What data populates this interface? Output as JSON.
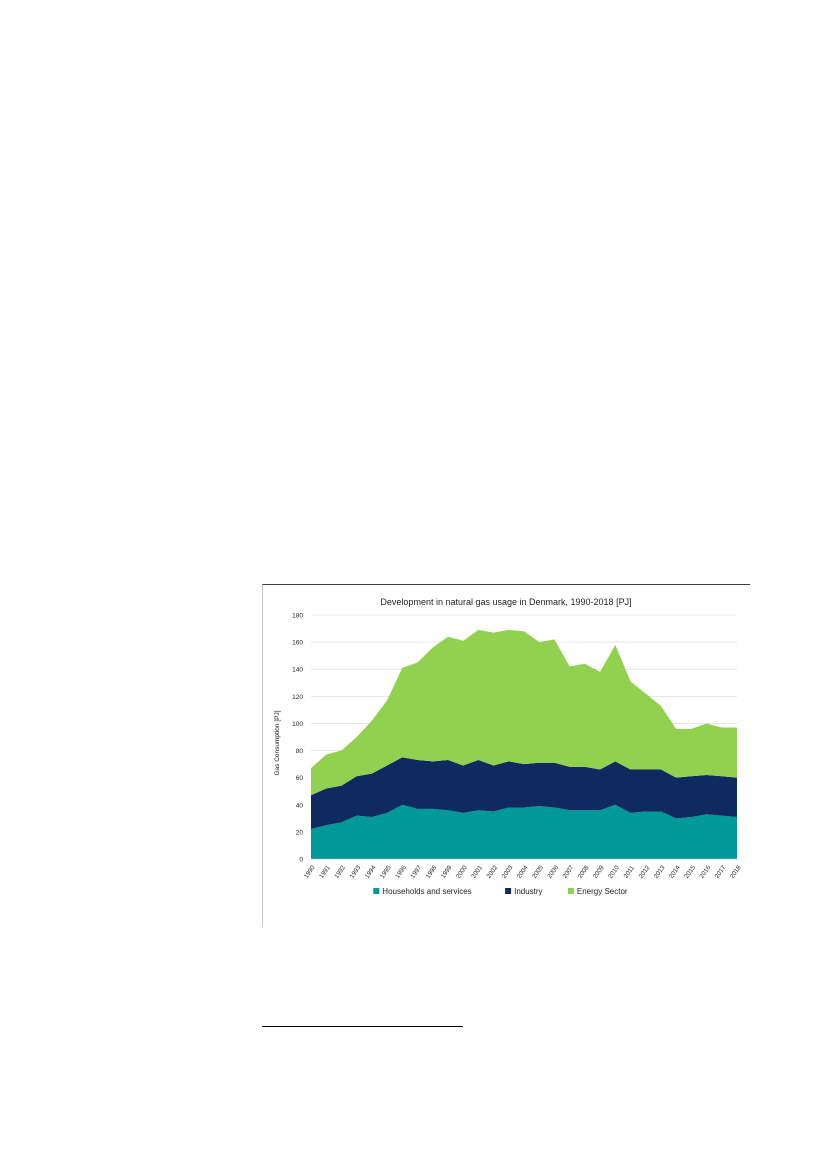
{
  "chart_data": {
    "type": "area",
    "stacked": true,
    "title": "Development in natural gas usage in Denmark, 1990-2018 [PJ]",
    "xlabel": "",
    "ylabel": "Gas Consumption [PJ]",
    "ylim": [
      0,
      180
    ],
    "yticks": [
      0,
      20,
      40,
      60,
      80,
      100,
      120,
      140,
      160,
      180
    ],
    "grid": true,
    "legend_position": "bottom",
    "categories": [
      "1990",
      "1991",
      "1992",
      "1993",
      "1994",
      "1995",
      "1996",
      "1997",
      "1998",
      "1999",
      "2000",
      "2001",
      "2002",
      "2003",
      "2004",
      "2005",
      "2006",
      "2007",
      "2008",
      "2009",
      "2010",
      "2011",
      "2012",
      "2013",
      "2014",
      "2015",
      "2016",
      "2017",
      "2018"
    ],
    "series": [
      {
        "name": "Households and services",
        "color": "#00999a",
        "values": [
          22,
          25,
          27,
          32,
          31,
          34,
          40,
          37,
          37,
          36,
          34,
          36,
          35,
          38,
          38,
          39,
          38,
          36,
          36,
          36,
          40,
          34,
          35,
          35,
          30,
          31,
          33,
          32,
          31
        ]
      },
      {
        "name": "Industry",
        "color": "#0f2a5e",
        "values": [
          25,
          27,
          27,
          29,
          32,
          35,
          35,
          36,
          35,
          37,
          35,
          37,
          34,
          34,
          32,
          32,
          33,
          32,
          32,
          30,
          32,
          32,
          31,
          31,
          30,
          30,
          29,
          29,
          29
        ]
      },
      {
        "name": "Energy Sector",
        "color": "#92d050",
        "values": [
          20,
          25,
          26,
          29,
          39,
          48,
          66,
          72,
          84,
          91,
          92,
          96,
          98,
          97,
          98,
          89,
          91,
          74,
          76,
          72,
          86,
          65,
          56,
          47,
          36,
          35,
          38,
          36,
          37
        ]
      }
    ]
  }
}
